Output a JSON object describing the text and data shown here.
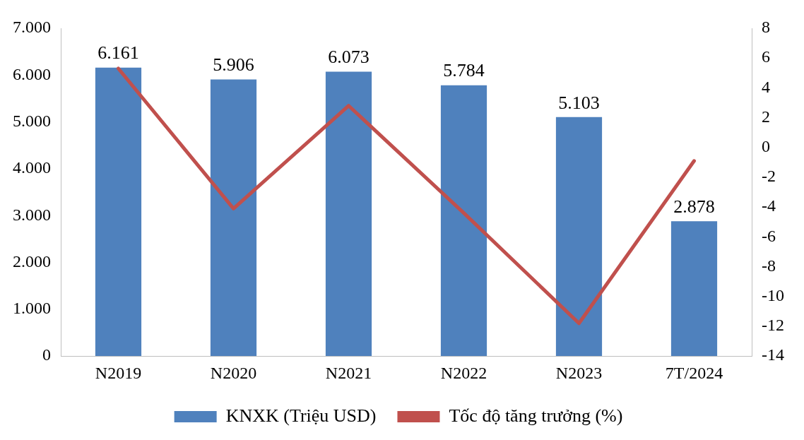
{
  "chart_data": {
    "type": "bar",
    "categories": [
      "N2019",
      "N2020",
      "N2021",
      "N2022",
      "N2023",
      "7T/2024"
    ],
    "series": [
      {
        "name": "KNXK (Triệu USD)",
        "color": "#4f81bd",
        "values": [
          6161,
          5906,
          6073,
          5784,
          5103,
          2878
        ],
        "value_labels": [
          "6.161",
          "5.906",
          "6.073",
          "5.784",
          "5.103",
          "2.878"
        ]
      },
      {
        "name": "Tốc độ tăng trưởng (%)",
        "type": "line",
        "axis": "y2",
        "color": "#c0504d",
        "values": [
          5.3,
          -4.1,
          2.8,
          -4.4,
          -11.8,
          -0.9
        ]
      }
    ],
    "ylim": [
      0,
      7000
    ],
    "yticks": [
      {
        "value": 0,
        "label": "0"
      },
      {
        "value": 1000,
        "label": "1.000"
      },
      {
        "value": 2000,
        "label": "2.000"
      },
      {
        "value": 3000,
        "label": "3.000"
      },
      {
        "value": 4000,
        "label": "4.000"
      },
      {
        "value": 5000,
        "label": "5.000"
      },
      {
        "value": 6000,
        "label": "6.000"
      },
      {
        "value": 7000,
        "label": "7.000"
      }
    ],
    "y2lim": [
      -14,
      8
    ],
    "y2ticks": [
      -14,
      -12,
      -10,
      -8,
      -6,
      -4,
      -2,
      0,
      2,
      4,
      6,
      8
    ],
    "legend": "bottom",
    "grid": false,
    "marker": "none"
  }
}
